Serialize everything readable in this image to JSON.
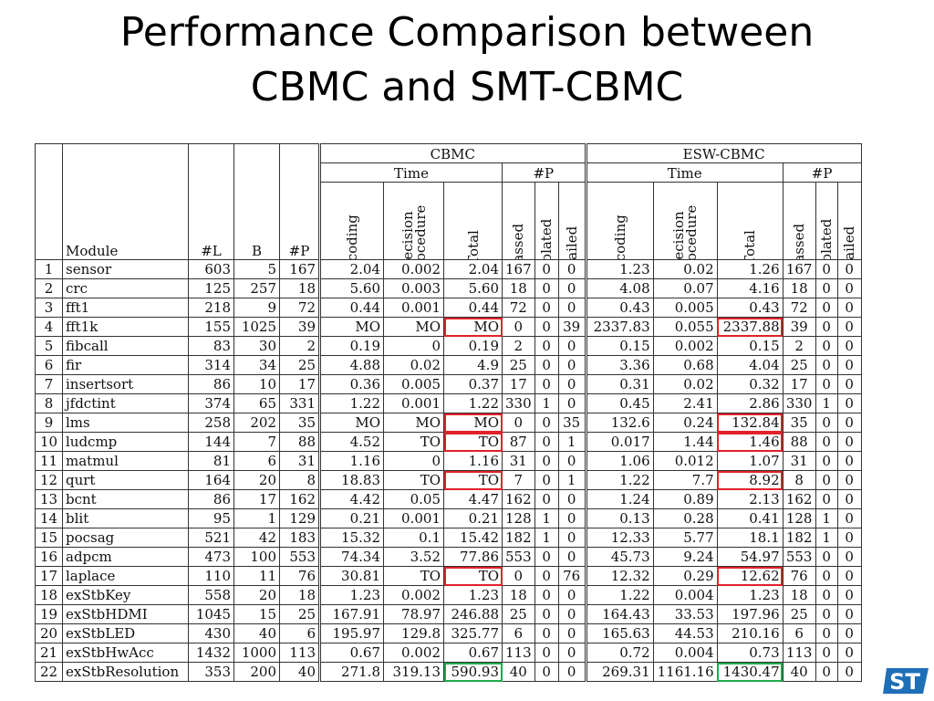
{
  "title_line1": "Performance Comparison between",
  "title_line2": "CBMC and SMT-CBMC",
  "header": {
    "module": "Module",
    "L": "#L",
    "B": "B",
    "P": "#P",
    "group1": "CBMC",
    "group2": "ESW-CBMC",
    "time": "Time",
    "hashP": "#P",
    "encoding": "Encoding",
    "decision1": "Decision",
    "decision2": "Procedure",
    "total": "Total",
    "passed": "Passed",
    "violated": "Violated",
    "failed": "Failed"
  },
  "rows": [
    [
      "1",
      "sensor",
      "603",
      "5",
      "167",
      "2.04",
      "0.002",
      "2.04",
      "167",
      "0",
      "0",
      "1.23",
      "0.02",
      "1.26",
      "167",
      "0",
      "0"
    ],
    [
      "2",
      "crc",
      "125",
      "257",
      "18",
      "5.60",
      "0.003",
      "5.60",
      "18",
      "0",
      "0",
      "4.08",
      "0.07",
      "4.16",
      "18",
      "0",
      "0"
    ],
    [
      "3",
      "fft1",
      "218",
      "9",
      "72",
      "0.44",
      "0.001",
      "0.44",
      "72",
      "0",
      "0",
      "0.43",
      "0.005",
      "0.43",
      "72",
      "0",
      "0"
    ],
    [
      "4",
      "fft1k",
      "155",
      "1025",
      "39",
      "MO",
      "MO",
      "MO",
      "0",
      "0",
      "39",
      "2337.83",
      "0.055",
      "2337.88",
      "39",
      "0",
      "0"
    ],
    [
      "5",
      "fibcall",
      "83",
      "30",
      "2",
      "0.19",
      "0",
      "0.19",
      "2",
      "0",
      "0",
      "0.15",
      "0.002",
      "0.15",
      "2",
      "0",
      "0"
    ],
    [
      "6",
      "fir",
      "314",
      "34",
      "25",
      "4.88",
      "0.02",
      "4.9",
      "25",
      "0",
      "0",
      "3.36",
      "0.68",
      "4.04",
      "25",
      "0",
      "0"
    ],
    [
      "7",
      "insertsort",
      "86",
      "10",
      "17",
      "0.36",
      "0.005",
      "0.37",
      "17",
      "0",
      "0",
      "0.31",
      "0.02",
      "0.32",
      "17",
      "0",
      "0"
    ],
    [
      "8",
      "jfdctint",
      "374",
      "65",
      "331",
      "1.22",
      "0.001",
      "1.22",
      "330",
      "1",
      "0",
      "0.45",
      "2.41",
      "2.86",
      "330",
      "1",
      "0"
    ],
    [
      "9",
      "lms",
      "258",
      "202",
      "35",
      "MO",
      "MO",
      "MO",
      "0",
      "0",
      "35",
      "132.6",
      "0.24",
      "132.84",
      "35",
      "0",
      "0"
    ],
    [
      "10",
      "ludcmp",
      "144",
      "7",
      "88",
      "4.52",
      "TO",
      "TO",
      "87",
      "0",
      "1",
      "0.017",
      "1.44",
      "1.46",
      "88",
      "0",
      "0"
    ],
    [
      "11",
      "matmul",
      "81",
      "6",
      "31",
      "1.16",
      "0",
      "1.16",
      "31",
      "0",
      "0",
      "1.06",
      "0.012",
      "1.07",
      "31",
      "0",
      "0"
    ],
    [
      "12",
      "qurt",
      "164",
      "20",
      "8",
      "18.83",
      "TO",
      "TO",
      "7",
      "0",
      "1",
      "1.22",
      "7.7",
      "8.92",
      "8",
      "0",
      "0"
    ],
    [
      "13",
      "bcnt",
      "86",
      "17",
      "162",
      "4.42",
      "0.05",
      "4.47",
      "162",
      "0",
      "0",
      "1.24",
      "0.89",
      "2.13",
      "162",
      "0",
      "0"
    ],
    [
      "14",
      "blit",
      "95",
      "1",
      "129",
      "0.21",
      "0.001",
      "0.21",
      "128",
      "1",
      "0",
      "0.13",
      "0.28",
      "0.41",
      "128",
      "1",
      "0"
    ],
    [
      "15",
      "pocsag",
      "521",
      "42",
      "183",
      "15.32",
      "0.1",
      "15.42",
      "182",
      "1",
      "0",
      "12.33",
      "5.77",
      "18.1",
      "182",
      "1",
      "0"
    ],
    [
      "16",
      "adpcm",
      "473",
      "100",
      "553",
      "74.34",
      "3.52",
      "77.86",
      "553",
      "0",
      "0",
      "45.73",
      "9.24",
      "54.97",
      "553",
      "0",
      "0"
    ],
    [
      "17",
      "laplace",
      "110",
      "11",
      "76",
      "30.81",
      "TO",
      "TO",
      "0",
      "0",
      "76",
      "12.32",
      "0.29",
      "12.62",
      "76",
      "0",
      "0"
    ],
    [
      "18",
      "exStbKey",
      "558",
      "20",
      "18",
      "1.23",
      "0.002",
      "1.23",
      "18",
      "0",
      "0",
      "1.22",
      "0.004",
      "1.23",
      "18",
      "0",
      "0"
    ],
    [
      "19",
      "exStbHDMI",
      "1045",
      "15",
      "25",
      "167.91",
      "78.97",
      "246.88",
      "25",
      "0",
      "0",
      "164.43",
      "33.53",
      "197.96",
      "25",
      "0",
      "0"
    ],
    [
      "20",
      "exStbLED",
      "430",
      "40",
      "6",
      "195.97",
      "129.8",
      "325.77",
      "6",
      "0",
      "0",
      "165.63",
      "44.53",
      "210.16",
      "6",
      "0",
      "0"
    ],
    [
      "21",
      "exStbHwAcc",
      "1432",
      "1000",
      "113",
      "0.67",
      "0.002",
      "0.67",
      "113",
      "0",
      "0",
      "0.72",
      "0.004",
      "0.73",
      "113",
      "0",
      "0"
    ],
    [
      "22",
      "exStbResolution",
      "353",
      "200",
      "40",
      "271.8",
      "319.13",
      "590.93",
      "40",
      "0",
      "0",
      "269.31",
      "1161.16",
      "1430.47",
      "40",
      "0",
      "0"
    ]
  ],
  "highlights_red_cbmc_total": [
    "4",
    "9",
    "10",
    "12",
    "17"
  ],
  "highlights_red_esw_total": [
    "4",
    "9",
    "10",
    "12",
    "17"
  ],
  "highlights_green_total": [
    "22"
  ],
  "colors": {
    "red_highlight": "#e0212a",
    "green_highlight": "#1faa4d",
    "logo_blue": "#1e6fb8"
  },
  "logo_text": "ST"
}
